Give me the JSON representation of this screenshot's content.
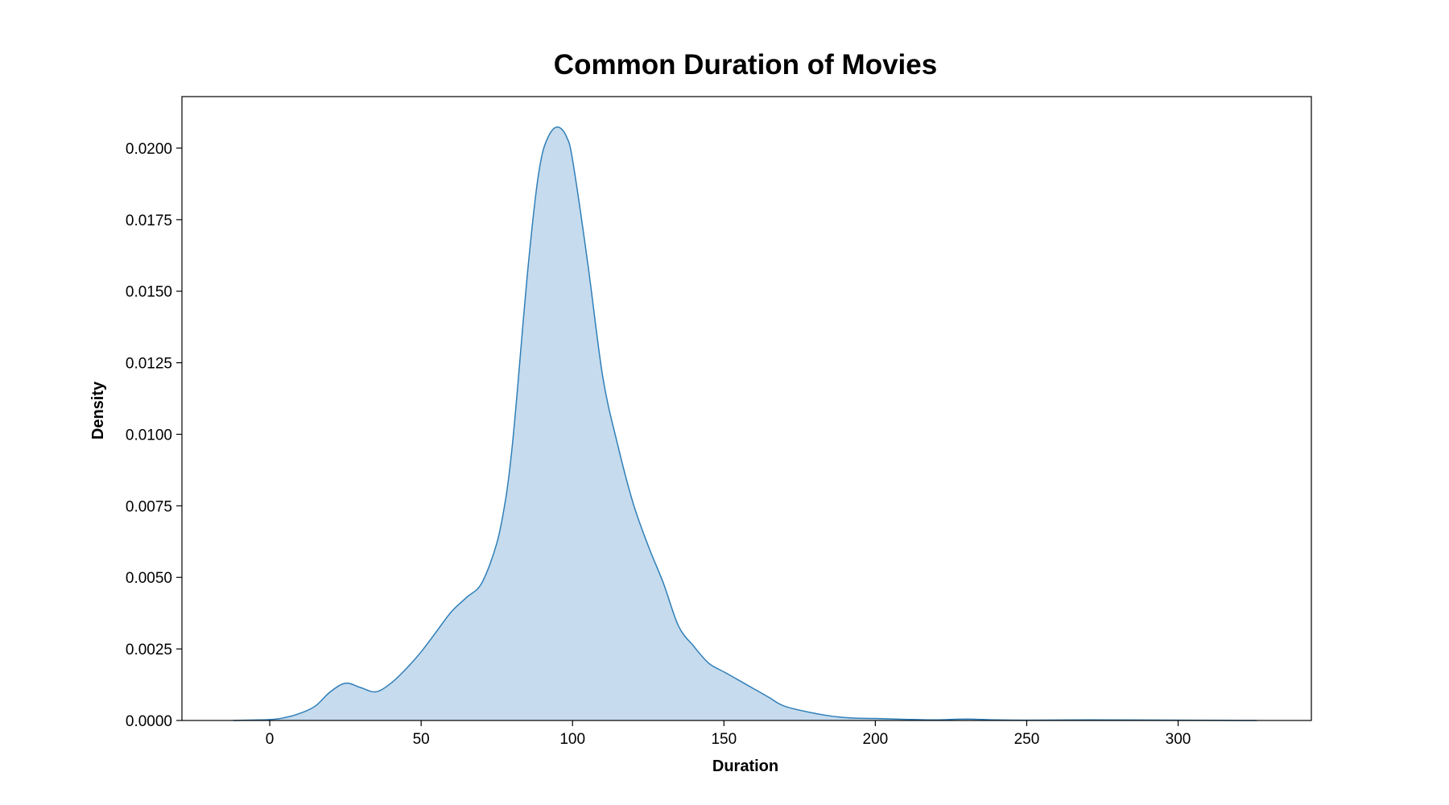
{
  "chart_data": {
    "type": "area",
    "title": "Common Duration of Movies",
    "xlabel": "Duration",
    "ylabel": "Density",
    "xlim": [
      -29,
      344
    ],
    "ylim": [
      0,
      0.0218
    ],
    "x_ticks": [
      0,
      50,
      100,
      150,
      200,
      250,
      300
    ],
    "x_tick_labels": [
      "0",
      "50",
      "100",
      "150",
      "200",
      "250",
      "300"
    ],
    "y_ticks": [
      0,
      0.0025,
      0.005,
      0.0075,
      0.01,
      0.0125,
      0.015,
      0.0175,
      0.02
    ],
    "y_tick_labels": [
      "0.0000",
      "0.0025",
      "0.0050",
      "0.0075",
      "0.0100",
      "0.0125",
      "0.0150",
      "0.0175",
      "0.0200"
    ],
    "grid": false,
    "colors": {
      "line": "#2f7fb9",
      "fill": "#c6dbed",
      "frame": "#000000"
    },
    "series": [
      {
        "x": [
          -12,
          0,
          5,
          10,
          15,
          20,
          25,
          30,
          35,
          40,
          45,
          50,
          55,
          60,
          65,
          70,
          75,
          78,
          80,
          82,
          85,
          88,
          90,
          92,
          94,
          96,
          98,
          100,
          105,
          110,
          115,
          120,
          125,
          130,
          135,
          140,
          145,
          150,
          155,
          160,
          165,
          170,
          180,
          190,
          200,
          210,
          220,
          230,
          240,
          250,
          270,
          300,
          320,
          326
        ],
        "y": [
          0,
          3e-05,
          0.0001,
          0.00025,
          0.0005,
          0.001,
          0.0013,
          0.00115,
          0.001,
          0.0013,
          0.0018,
          0.0024,
          0.0031,
          0.0038,
          0.0043,
          0.0048,
          0.0062,
          0.0078,
          0.0095,
          0.0118,
          0.0155,
          0.0185,
          0.0198,
          0.0204,
          0.0207,
          0.0207,
          0.0204,
          0.0196,
          0.016,
          0.012,
          0.0096,
          0.0076,
          0.0061,
          0.0048,
          0.0033,
          0.0026,
          0.002,
          0.0017,
          0.0014,
          0.0011,
          0.0008,
          0.0005,
          0.00025,
          0.0001,
          7e-05,
          4e-05,
          2e-05,
          5e-05,
          2e-05,
          1e-05,
          2e-05,
          1e-05,
          0,
          0
        ]
      }
    ]
  }
}
